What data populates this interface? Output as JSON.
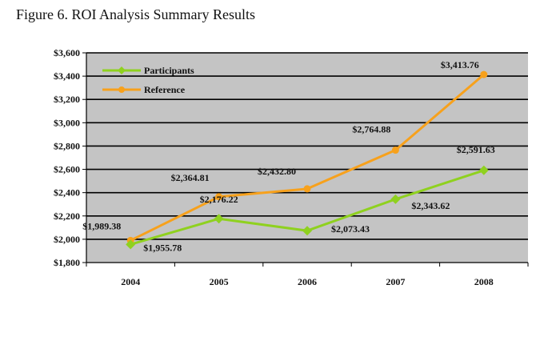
{
  "figure_title": "Figure 6. ROI Analysis Summary Results",
  "colors": {
    "plot_bg": "#c4c4c4",
    "participants": "#8fd11f",
    "reference": "#f7a11c",
    "grid": "#000000"
  },
  "chart_data": {
    "type": "line",
    "x": [
      "2004",
      "2005",
      "2006",
      "2007",
      "2008"
    ],
    "ylim": [
      1800,
      3600
    ],
    "ytick_labels": [
      "$1,800",
      "$2,000",
      "$2,200",
      "$2,400",
      "$2,600",
      "$2,800",
      "$3,000",
      "$3,200",
      "$3,400",
      "$3,600"
    ],
    "grid": true,
    "legend_position": "top-left",
    "series": [
      {
        "name": "Participants",
        "values": [
          1955.78,
          2176.22,
          2073.43,
          2343.62,
          2591.63
        ],
        "labels": [
          "$1,955.78",
          "$2,176.22",
          "$2,073.43",
          "$2,343.62",
          "$2,591.63"
        ]
      },
      {
        "name": "Reference",
        "values": [
          1989.38,
          2364.81,
          2432.8,
          2764.88,
          3413.76
        ],
        "labels": [
          "$1,989.38",
          "$2,364.81",
          "$2,432.80",
          "$2,764.88",
          "$3,413.76"
        ]
      }
    ]
  }
}
